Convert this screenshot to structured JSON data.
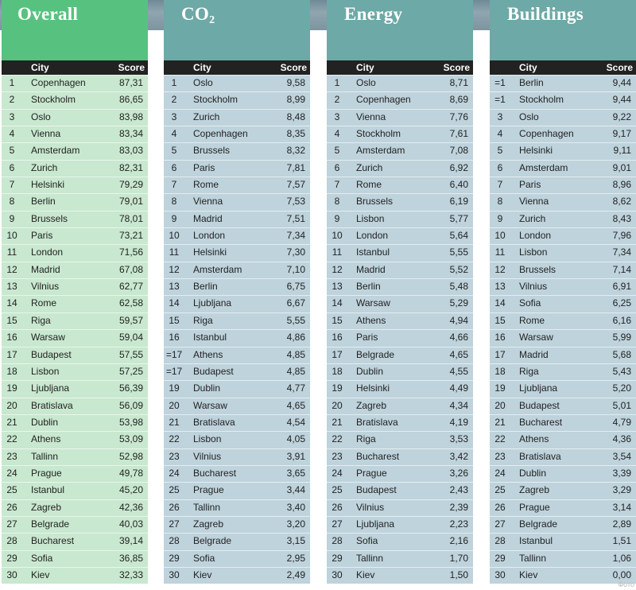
{
  "colors": {
    "overall_header": "#57c27f",
    "overall_row": "#c8e8cf",
    "teal_header": "#6da9a6",
    "teal_row": "#bed3dc"
  },
  "panels": [
    {
      "title": "Overall",
      "col_city": "City",
      "col_score": "Score",
      "rows": [
        [
          "1",
          "Copenhagen",
          "87,31"
        ],
        [
          "2",
          "Stockholm",
          "86,65"
        ],
        [
          "3",
          "Oslo",
          "83,98"
        ],
        [
          "4",
          "Vienna",
          "83,34"
        ],
        [
          "5",
          "Amsterdam",
          "83,03"
        ],
        [
          "6",
          "Zurich",
          "82,31"
        ],
        [
          "7",
          "Helsinki",
          "79,29"
        ],
        [
          "8",
          "Berlin",
          "79,01"
        ],
        [
          "9",
          "Brussels",
          "78,01"
        ],
        [
          "10",
          "Paris",
          "73,21"
        ],
        [
          "11",
          "London",
          "71,56"
        ],
        [
          "12",
          "Madrid",
          "67,08"
        ],
        [
          "13",
          "Vilnius",
          "62,77"
        ],
        [
          "14",
          "Rome",
          "62,58"
        ],
        [
          "15",
          "Riga",
          "59,57"
        ],
        [
          "16",
          "Warsaw",
          "59,04"
        ],
        [
          "17",
          "Budapest",
          "57,55"
        ],
        [
          "18",
          "Lisbon",
          "57,25"
        ],
        [
          "19",
          "Ljubljana",
          "56,39"
        ],
        [
          "20",
          "Bratislava",
          "56,09"
        ],
        [
          "21",
          "Dublin",
          "53,98"
        ],
        [
          "22",
          "Athens",
          "53,09"
        ],
        [
          "23",
          "Tallinn",
          "52,98"
        ],
        [
          "24",
          "Prague",
          "49,78"
        ],
        [
          "25",
          "Istanbul",
          "45,20"
        ],
        [
          "26",
          "Zagreb",
          "42,36"
        ],
        [
          "27",
          "Belgrade",
          "40,03"
        ],
        [
          "28",
          "Bucharest",
          "39,14"
        ],
        [
          "29",
          "Sofia",
          "36,85"
        ],
        [
          "30",
          "Kiev",
          "32,33"
        ]
      ]
    },
    {
      "title": "CO",
      "title_sub": "2",
      "col_city": "City",
      "col_score": "Score",
      "rows": [
        [
          "1",
          "Oslo",
          "9,58"
        ],
        [
          "2",
          "Stockholm",
          "8,99"
        ],
        [
          "3",
          "Zurich",
          "8,48"
        ],
        [
          "4",
          "Copenhagen",
          "8,35"
        ],
        [
          "5",
          "Brussels",
          "8,32"
        ],
        [
          "6",
          "Paris",
          "7,81"
        ],
        [
          "7",
          "Rome",
          "7,57"
        ],
        [
          "8",
          "Vienna",
          "7,53"
        ],
        [
          "9",
          "Madrid",
          "7,51"
        ],
        [
          "10",
          "London",
          "7,34"
        ],
        [
          "11",
          "Helsinki",
          "7,30"
        ],
        [
          "12",
          "Amsterdam",
          "7,10"
        ],
        [
          "13",
          "Berlin",
          "6,75"
        ],
        [
          "14",
          "Ljubljana",
          "6,67"
        ],
        [
          "15",
          "Riga",
          "5,55"
        ],
        [
          "16",
          "Istanbul",
          "4,86"
        ],
        [
          "=17",
          "Athens",
          "4,85"
        ],
        [
          "=17",
          "Budapest",
          "4,85"
        ],
        [
          "19",
          "Dublin",
          "4,77"
        ],
        [
          "20",
          "Warsaw",
          "4,65"
        ],
        [
          "21",
          "Bratislava",
          "4,54"
        ],
        [
          "22",
          "Lisbon",
          "4,05"
        ],
        [
          "23",
          "Vilnius",
          "3,91"
        ],
        [
          "24",
          "Bucharest",
          "3,65"
        ],
        [
          "25",
          "Prague",
          "3,44"
        ],
        [
          "26",
          "Tallinn",
          "3,40"
        ],
        [
          "27",
          "Zagreb",
          "3,20"
        ],
        [
          "28",
          "Belgrade",
          "3,15"
        ],
        [
          "29",
          "Sofia",
          "2,95"
        ],
        [
          "30",
          "Kiev",
          "2,49"
        ]
      ]
    },
    {
      "title": "Energy",
      "col_city": "City",
      "col_score": "Score",
      "rows": [
        [
          "1",
          "Oslo",
          "8,71"
        ],
        [
          "2",
          "Copenhagen",
          "8,69"
        ],
        [
          "3",
          "Vienna",
          "7,76"
        ],
        [
          "4",
          "Stockholm",
          "7,61"
        ],
        [
          "5",
          "Amsterdam",
          "7,08"
        ],
        [
          "6",
          "Zurich",
          "6,92"
        ],
        [
          "7",
          "Rome",
          "6,40"
        ],
        [
          "8",
          "Brussels",
          "6,19"
        ],
        [
          "9",
          "Lisbon",
          "5,77"
        ],
        [
          "10",
          "London",
          "5,64"
        ],
        [
          "11",
          "Istanbul",
          "5,55"
        ],
        [
          "12",
          "Madrid",
          "5,52"
        ],
        [
          "13",
          "Berlin",
          "5,48"
        ],
        [
          "14",
          "Warsaw",
          "5,29"
        ],
        [
          "15",
          "Athens",
          "4,94"
        ],
        [
          "16",
          "Paris",
          "4,66"
        ],
        [
          "17",
          "Belgrade",
          "4,65"
        ],
        [
          "18",
          "Dublin",
          "4,55"
        ],
        [
          "19",
          "Helsinki",
          "4,49"
        ],
        [
          "20",
          "Zagreb",
          "4,34"
        ],
        [
          "21",
          "Bratislava",
          "4,19"
        ],
        [
          "22",
          "Riga",
          "3,53"
        ],
        [
          "23",
          "Bucharest",
          "3,42"
        ],
        [
          "24",
          "Prague",
          "3,26"
        ],
        [
          "25",
          "Budapest",
          "2,43"
        ],
        [
          "26",
          "Vilnius",
          "2,39"
        ],
        [
          "27",
          "Ljubljana",
          "2,23"
        ],
        [
          "28",
          "Sofia",
          "2,16"
        ],
        [
          "29",
          "Tallinn",
          "1,70"
        ],
        [
          "30",
          "Kiev",
          "1,50"
        ]
      ]
    },
    {
      "title": "Buildings",
      "col_city": "City",
      "col_score": "Score",
      "rows": [
        [
          "=1",
          "Berlin",
          "9,44"
        ],
        [
          "=1",
          "Stockholm",
          "9,44"
        ],
        [
          "3",
          "Oslo",
          "9,22"
        ],
        [
          "4",
          "Copenhagen",
          "9,17"
        ],
        [
          "5",
          "Helsinki",
          "9,11"
        ],
        [
          "6",
          "Amsterdam",
          "9,01"
        ],
        [
          "7",
          "Paris",
          "8,96"
        ],
        [
          "8",
          "Vienna",
          "8,62"
        ],
        [
          "9",
          "Zurich",
          "8,43"
        ],
        [
          "10",
          "London",
          "7,96"
        ],
        [
          "11",
          "Lisbon",
          "7,34"
        ],
        [
          "12",
          "Brussels",
          "7,14"
        ],
        [
          "13",
          "Vilnius",
          "6,91"
        ],
        [
          "14",
          "Sofia",
          "6,25"
        ],
        [
          "15",
          "Rome",
          "6,16"
        ],
        [
          "16",
          "Warsaw",
          "5,99"
        ],
        [
          "17",
          "Madrid",
          "5,68"
        ],
        [
          "18",
          "Riga",
          "5,43"
        ],
        [
          "19",
          "Ljubljana",
          "5,20"
        ],
        [
          "20",
          "Budapest",
          "5,01"
        ],
        [
          "21",
          "Bucharest",
          "4,79"
        ],
        [
          "22",
          "Athens",
          "4,36"
        ],
        [
          "23",
          "Bratislava",
          "3,54"
        ],
        [
          "24",
          "Dublin",
          "3,39"
        ],
        [
          "25",
          "Zagreb",
          "3,29"
        ],
        [
          "26",
          "Prague",
          "3,14"
        ],
        [
          "27",
          "Belgrade",
          "2,89"
        ],
        [
          "28",
          "Istanbul",
          "1,51"
        ],
        [
          "29",
          "Tallinn",
          "1,06"
        ],
        [
          "30",
          "Kiev",
          "0,00"
        ]
      ]
    }
  ],
  "watermark": "Фото"
}
